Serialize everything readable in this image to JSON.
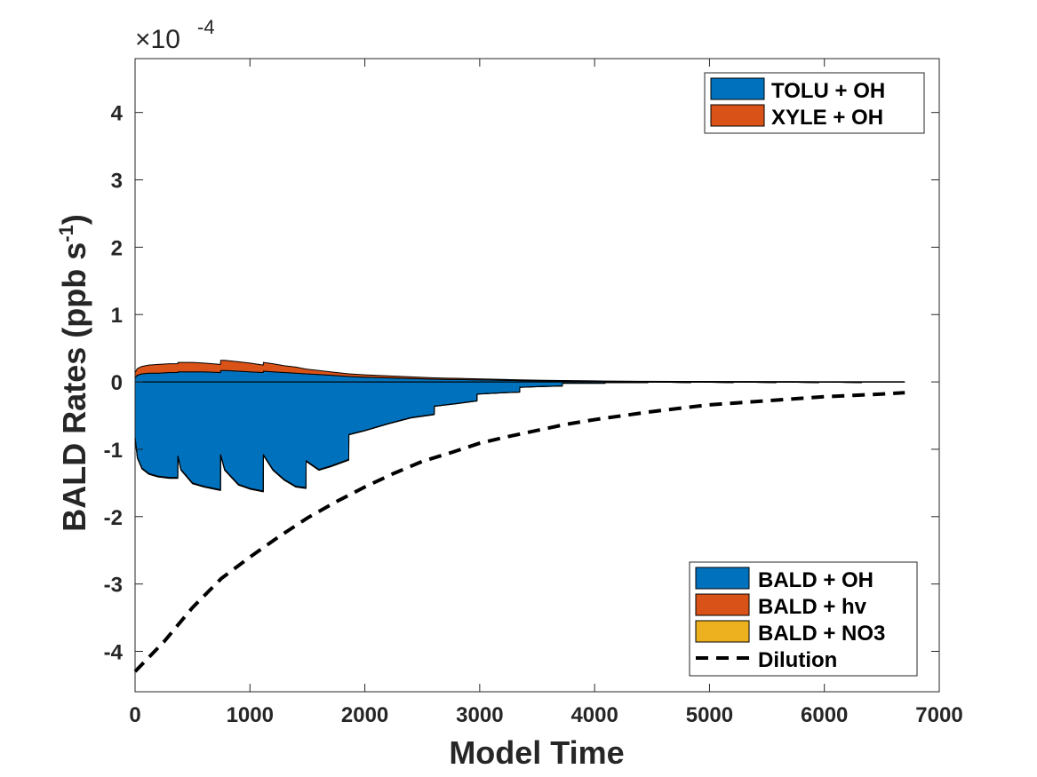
{
  "chart_data": {
    "type": "area",
    "xlabel": "Model Time",
    "ylabel_main": "BALD Rates (ppb s",
    "ylabel_sup": "-1",
    "ylabel_close": ")",
    "y_exponent_base": "×10",
    "y_exponent_power": "-4",
    "xlim": [
      0,
      7000
    ],
    "ylim": [
      -4.6,
      4.8
    ],
    "x_ticks": [
      0,
      1000,
      2000,
      3000,
      4000,
      5000,
      6000,
      7000
    ],
    "x_tick_labels": [
      "0",
      "1000",
      "2000",
      "3000",
      "4000",
      "5000",
      "6000",
      "7000"
    ],
    "y_ticks": [
      -4,
      -3,
      -2,
      -1,
      0,
      1,
      2,
      3,
      4
    ],
    "y_tick_labels": [
      "-4",
      "-3",
      "-2",
      "-1",
      "0",
      "1",
      "2",
      "3",
      "4"
    ],
    "legend_production": {
      "placement": "top-right",
      "entries": [
        {
          "label": "TOLU + OH",
          "color": "#0072BD"
        },
        {
          "label": "XYLE + OH",
          "color": "#D95319"
        }
      ]
    },
    "legend_loss": {
      "placement": "bottom-right",
      "entries": [
        {
          "label": "BALD + OH",
          "color": "#0072BD",
          "style": "patch"
        },
        {
          "label": "BALD + hv",
          "color": "#D95319",
          "style": "patch"
        },
        {
          "label": "BALD + NO3",
          "color": "#EDB120",
          "style": "patch"
        },
        {
          "label": "Dilution",
          "color": "#000000",
          "style": "dashed"
        }
      ]
    },
    "x": [
      0,
      20,
      60,
      120,
      200,
      300,
      372,
      373,
      400,
      500,
      600,
      744,
      745,
      780,
      900,
      1000,
      1116,
      1117,
      1200,
      1300,
      1400,
      1488,
      1489,
      1600,
      1700,
      1860,
      1861,
      2000,
      2200,
      2400,
      2604,
      2605,
      2800,
      2976,
      2977,
      3200,
      3348,
      3349,
      3500,
      3720,
      3721,
      4000,
      4092,
      4093,
      4400,
      4464,
      4465,
      4836,
      4837,
      5208,
      5209,
      5580,
      5581,
      5952,
      5953,
      6324,
      6325,
      6696
    ],
    "series": [
      {
        "name": "TOLU + OH",
        "color": "#0072BD",
        "values": [
          0.06,
          0.1,
          0.12,
          0.13,
          0.13,
          0.14,
          0.14,
          0.15,
          0.15,
          0.15,
          0.15,
          0.14,
          0.17,
          0.17,
          0.16,
          0.15,
          0.14,
          0.16,
          0.15,
          0.14,
          0.13,
          0.12,
          0.12,
          0.11,
          0.1,
          0.08,
          0.08,
          0.07,
          0.06,
          0.05,
          0.04,
          0.04,
          0.035,
          0.03,
          0.03,
          0.025,
          0.02,
          0.02,
          0.018,
          0.015,
          0.015,
          0.012,
          0.01,
          0.01,
          0.008,
          0.008,
          0.008,
          0.006,
          0.006,
          0.005,
          0.005,
          0.004,
          0.004,
          0.003,
          0.003,
          0.002,
          0.002,
          0.002
        ]
      },
      {
        "name": "XYLE + OH",
        "color": "#D95319",
        "values": [
          0.08,
          0.1,
          0.11,
          0.12,
          0.13,
          0.13,
          0.13,
          0.14,
          0.14,
          0.14,
          0.13,
          0.12,
          0.15,
          0.15,
          0.14,
          0.13,
          0.11,
          0.13,
          0.12,
          0.1,
          0.09,
          0.07,
          0.07,
          0.06,
          0.05,
          0.04,
          0.04,
          0.035,
          0.03,
          0.025,
          0.02,
          0.02,
          0.018,
          0.015,
          0.015,
          0.012,
          0.01,
          0.01,
          0.008,
          0.006,
          0.006,
          0.004,
          0.003,
          0.003,
          0.002,
          0.002,
          0.002,
          0.001,
          0.001,
          0.001,
          0.001,
          0.0005,
          0.0005,
          0.0005,
          0.0005,
          0.0,
          0.0,
          0.0
        ]
      },
      {
        "name": "BALD + OH",
        "color": "#0072BD",
        "values": [
          -0.82,
          -1.12,
          -1.28,
          -1.36,
          -1.4,
          -1.42,
          -1.42,
          -1.1,
          -1.3,
          -1.5,
          -1.55,
          -1.6,
          -1.08,
          -1.3,
          -1.52,
          -1.58,
          -1.62,
          -1.08,
          -1.3,
          -1.45,
          -1.55,
          -1.57,
          -1.17,
          -1.3,
          -1.25,
          -1.15,
          -0.78,
          -0.72,
          -0.62,
          -0.53,
          -0.48,
          -0.36,
          -0.32,
          -0.28,
          -0.18,
          -0.16,
          -0.15,
          -0.08,
          -0.07,
          -0.06,
          -0.02,
          -0.02,
          -0.02,
          -0.01,
          -0.01,
          -0.01,
          0.0,
          -0.01,
          0.0,
          -0.01,
          0.0,
          -0.01,
          0.0,
          -0.01,
          0.0,
          -0.01,
          0.0,
          0.0
        ]
      },
      {
        "name": "BALD + hv",
        "color": "#D95319",
        "values": [
          -0.01,
          -0.01,
          -0.01,
          -0.01,
          -0.01,
          -0.01,
          -0.01,
          -0.01,
          -0.01,
          -0.01,
          -0.01,
          -0.01,
          -0.01,
          -0.01,
          -0.01,
          -0.01,
          -0.01,
          -0.01,
          -0.01,
          -0.01,
          -0.01,
          -0.01,
          -0.01,
          -0.01,
          -0.01,
          -0.01,
          -0.005,
          -0.005,
          -0.005,
          -0.005,
          -0.005,
          -0.003,
          -0.003,
          -0.003,
          -0.002,
          -0.002,
          -0.002,
          -0.001,
          -0.001,
          -0.001,
          0.0,
          0.0,
          0.0,
          0.0,
          0.0,
          0.0,
          0.0,
          0.0,
          0.0,
          0.0,
          0.0,
          0.0,
          0.0,
          0.0,
          0.0,
          0.0,
          0.0,
          0.0
        ]
      },
      {
        "name": "BALD + NO3",
        "color": "#EDB120",
        "values": [
          -0.002,
          -0.002,
          -0.002,
          -0.002,
          -0.002,
          -0.002,
          -0.002,
          -0.002,
          -0.002,
          -0.002,
          -0.002,
          -0.002,
          -0.002,
          -0.002,
          -0.002,
          -0.002,
          -0.002,
          -0.002,
          -0.002,
          -0.002,
          -0.002,
          -0.002,
          -0.002,
          -0.002,
          -0.002,
          -0.002,
          -0.001,
          -0.001,
          -0.001,
          -0.001,
          -0.001,
          -0.001,
          -0.001,
          -0.001,
          0.0,
          0.0,
          0.0,
          0.0,
          0.0,
          0.0,
          0.0,
          0.0,
          0.0,
          0.0,
          0.0,
          0.0,
          0.0,
          0.0,
          0.0,
          0.0,
          0.0,
          0.0,
          0.0,
          0.0,
          0.0,
          0.0,
          0.0,
          0.0
        ]
      }
    ],
    "dilution": {
      "name": "Dilution",
      "color": "#000000",
      "x": [
        0,
        250,
        500,
        750,
        1000,
        1250,
        1500,
        1750,
        2000,
        2250,
        2500,
        2750,
        3000,
        3250,
        3500,
        3750,
        4000,
        4250,
        4500,
        4750,
        5000,
        5250,
        5500,
        5750,
        6000,
        6250,
        6500,
        6700
      ],
      "values": [
        -4.3,
        -3.86,
        -3.35,
        -2.92,
        -2.6,
        -2.3,
        -2.02,
        -1.78,
        -1.56,
        -1.36,
        -1.18,
        -1.05,
        -0.91,
        -0.81,
        -0.72,
        -0.63,
        -0.56,
        -0.5,
        -0.44,
        -0.39,
        -0.34,
        -0.31,
        -0.28,
        -0.25,
        -0.22,
        -0.2,
        -0.18,
        -0.16
      ]
    }
  }
}
